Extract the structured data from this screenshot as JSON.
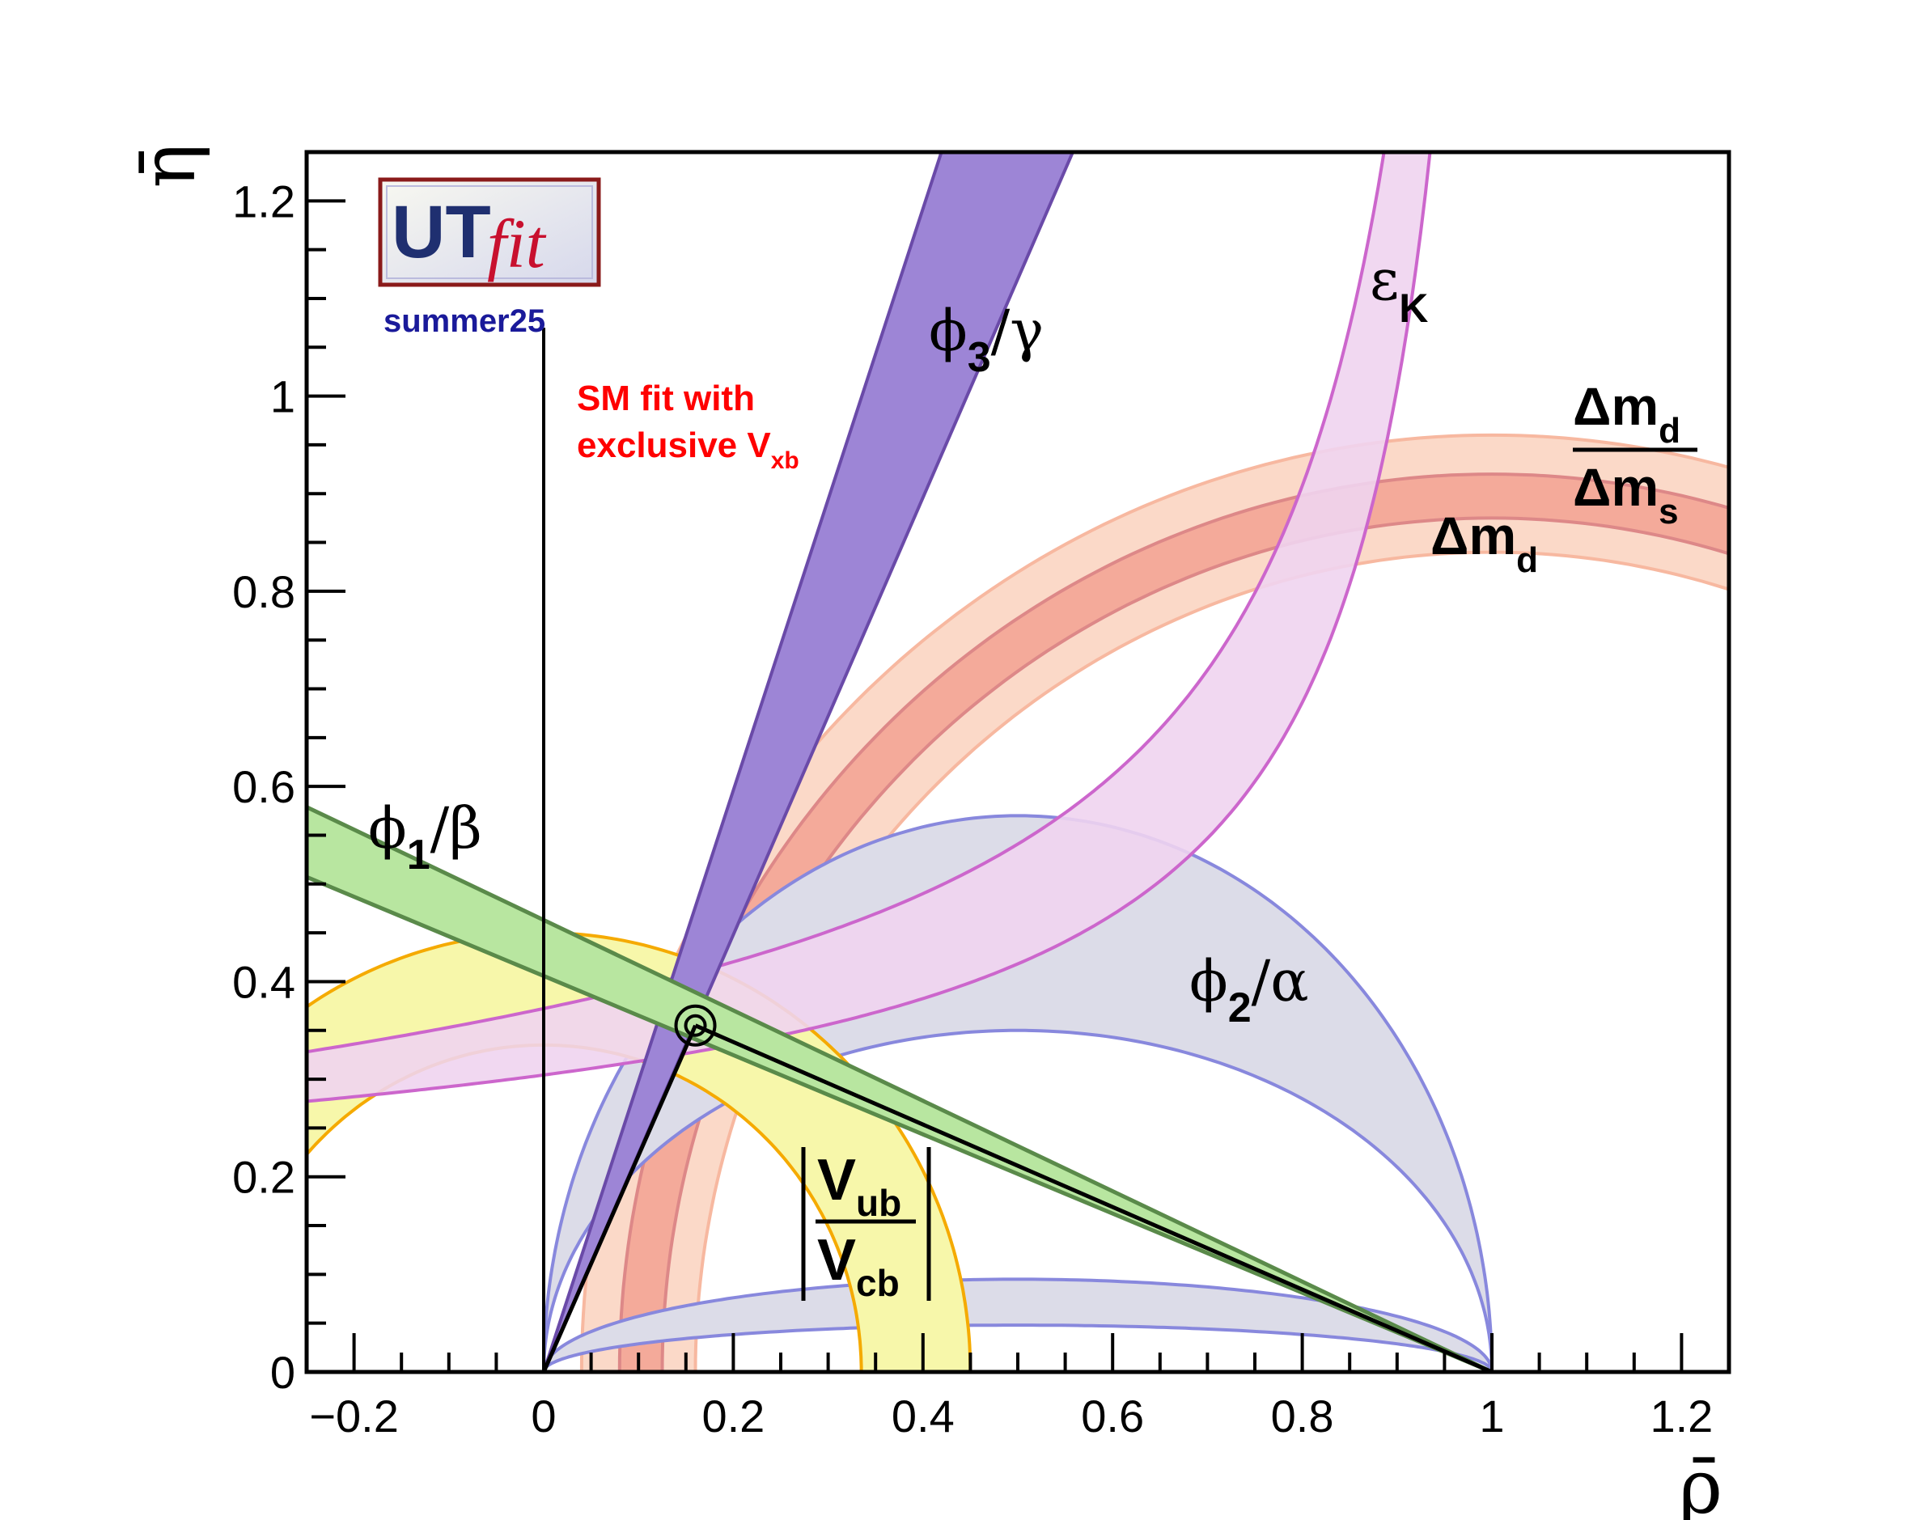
{
  "chart_data": {
    "type": "scatter",
    "xlabel": "ρ̄",
    "ylabel": "η̄",
    "xlim": [
      -0.25,
      1.25
    ],
    "ylim": [
      0,
      1.25
    ],
    "xticks": [
      -0.2,
      0,
      0.2,
      0.4,
      0.6,
      0.8,
      1,
      1.2
    ],
    "xtick_labels": [
      "−0.2",
      "0",
      "0.2",
      "0.4",
      "0.6",
      "0.8",
      "1",
      "1.2"
    ],
    "yticks": [
      0,
      0.2,
      0.4,
      0.6,
      0.8,
      1,
      1.2
    ],
    "ytick_labels": [
      "0",
      "0.2",
      "0.4",
      "0.6",
      "0.8",
      "1",
      "1.2"
    ],
    "apex": {
      "rho": 0.16,
      "eta": 0.355
    },
    "constraints": {
      "phi1_beta": {
        "slope_lo": -0.855,
        "eta0_lo": 0.264,
        "slope_hi": -0.82,
        "eta0_hi": 0.335,
        "color": "#b8e6a0",
        "edge": "#5a8a4a"
      },
      "phi2_alpha": {
        "center": [
          0.5,
          0
        ],
        "r_outer": 0.5,
        "ry_upper_outer": 0.57,
        "ry_upper_inner": 0.35,
        "ry_lower_outer": 0.095,
        "ry_lower_inner": 0.048,
        "color": "#dcdce8",
        "edge": "#8888dd"
      },
      "phi3_gamma": {
        "slope_lo": 2.24,
        "slope_hi": 2.98,
        "color": "#9d85d6",
        "edge": "#6a4aa8"
      },
      "vub_vcb": {
        "r_inner": 0.335,
        "r_outer": 0.45,
        "color": "#f7f7aa",
        "edge": "#f5aa00"
      },
      "eps_k": {
        "color": "#f0d4f0",
        "edge": "#cc66cc"
      },
      "dmd": {
        "center": [
          1,
          0
        ],
        "r_inner": 0.875,
        "r_outer": 0.92,
        "color": "#f4aa9a",
        "edge": "#dd8888"
      },
      "dmd_dms": {
        "center": [
          1,
          0
        ],
        "r_inner": 0.84,
        "r_outer": 0.96,
        "color": "#fbd9c8",
        "edge": "#f7b8a0"
      }
    }
  },
  "labels": {
    "phi3_gamma": {
      "main": "ϕ",
      "sub": "3",
      "rest": "/γ"
    },
    "phi1_beta": {
      "main": "ϕ",
      "sub": "1",
      "rest": "/β"
    },
    "phi2_alpha": {
      "main": "ϕ",
      "sub": "2",
      "rest": "/α"
    },
    "eps_k": {
      "main": "ε",
      "sub": "K"
    },
    "dmd": {
      "main": "Δm",
      "sub": "d"
    },
    "dmd_dms": {
      "num_main": "Δm",
      "num_sub": "d",
      "den_main": "Δm",
      "den_sub": "s"
    },
    "vub_vcb": {
      "num_main": "V",
      "num_sub": "ub",
      "den_main": "V",
      "den_sub": "cb"
    }
  },
  "logo": {
    "text_ut": "UT",
    "text_fit": "fit",
    "edition": "summer25"
  },
  "annotation": {
    "line1": "SM fit with",
    "line2": "exclusive V",
    "line2_sub": "xb"
  }
}
